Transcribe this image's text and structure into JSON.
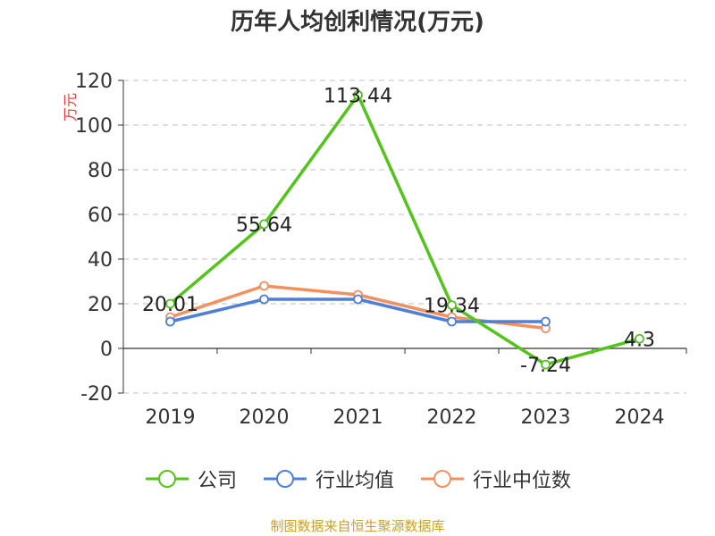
{
  "chart_data": {
    "type": "line",
    "title": "历年人均创利情况(万元)",
    "ylabel": "万元",
    "categories": [
      "2019",
      "2020",
      "2021",
      "2022",
      "2023",
      "2024"
    ],
    "ylim": [
      -20,
      120
    ],
    "yticks": [
      -20,
      0,
      20,
      40,
      60,
      80,
      100,
      120
    ],
    "grid": true,
    "legend_position": "bottom",
    "series": [
      {
        "name": "公司",
        "color": "#52c41a",
        "values": [
          20.01,
          55.64,
          113.44,
          19.34,
          -7.24,
          4.3
        ],
        "labels": [
          "20.01",
          "55.64",
          "113.44",
          "19.34",
          "-7.24",
          "4.3"
        ]
      },
      {
        "name": "行业均值",
        "color": "#4e7fd9",
        "values": [
          12,
          22,
          22,
          12,
          12,
          null
        ]
      },
      {
        "name": "行业中位数",
        "color": "#f39060",
        "values": [
          14,
          28,
          24,
          14,
          9,
          null
        ]
      }
    ]
  },
  "footer": "制图数据来自恒生聚源数据库"
}
